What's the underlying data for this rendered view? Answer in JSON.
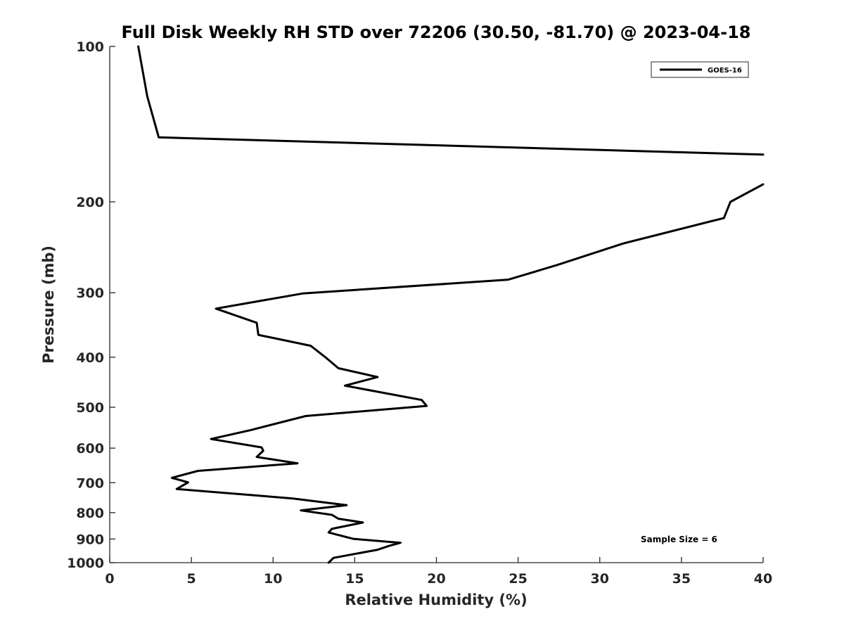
{
  "chart_data": {
    "type": "line",
    "title": "Full Disk Weekly RH STD over 72206 (30.50, -81.70) @ 2023-04-18",
    "xlabel": "Relative Humidity (%)",
    "ylabel": "Pressure (mb)",
    "xlim": [
      0,
      40
    ],
    "ylim": [
      100,
      1000
    ],
    "y_scale": "log",
    "y_reversed": true,
    "grid": false,
    "legend_position": "top-right",
    "x_ticks": [
      0,
      5,
      10,
      15,
      20,
      25,
      30,
      35,
      40
    ],
    "y_ticks": [
      100,
      200,
      300,
      400,
      500,
      600,
      700,
      800,
      900,
      1000
    ],
    "annotation": "Sample Size = 6",
    "series": [
      {
        "name": "GOES-16",
        "color": "#000000",
        "segments": [
          [
            [
              1.75,
              100
            ],
            [
              2.3,
              125
            ],
            [
              3.0,
              150
            ],
            [
              40.0,
              162
            ]
          ],
          [
            [
              40.0,
              185
            ],
            [
              38.0,
              200
            ],
            [
              37.6,
              215
            ],
            [
              31.4,
              241
            ],
            [
              27.4,
              265
            ],
            [
              24.4,
              283
            ],
            [
              11.8,
              301
            ],
            [
              6.5,
              322
            ],
            [
              9.0,
              343
            ],
            [
              9.1,
              362
            ],
            [
              12.3,
              380
            ],
            [
              13.2,
              400
            ],
            [
              14.0,
              420
            ],
            [
              16.4,
              437
            ],
            [
              14.4,
              454
            ],
            [
              19.1,
              484
            ],
            [
              19.4,
              497
            ],
            [
              12.0,
              520
            ],
            [
              8.6,
              554
            ],
            [
              6.2,
              576
            ],
            [
              9.3,
              598
            ],
            [
              9.4,
              607
            ],
            [
              9.0,
              624
            ],
            [
              11.5,
              642
            ],
            [
              5.4,
              664
            ],
            [
              3.8,
              685
            ],
            [
              4.8,
              699
            ],
            [
              4.1,
              720
            ],
            [
              11.2,
              751
            ],
            [
              14.5,
              774
            ],
            [
              11.7,
              792
            ],
            [
              13.6,
              808
            ],
            [
              14.0,
              822
            ],
            [
              15.5,
              836
            ],
            [
              13.6,
              860
            ],
            [
              13.4,
              874
            ],
            [
              14.9,
              899
            ],
            [
              17.8,
              915
            ],
            [
              17.1,
              928
            ],
            [
              16.4,
              944
            ],
            [
              13.7,
              979
            ],
            [
              13.4,
              1000
            ]
          ]
        ]
      }
    ]
  }
}
